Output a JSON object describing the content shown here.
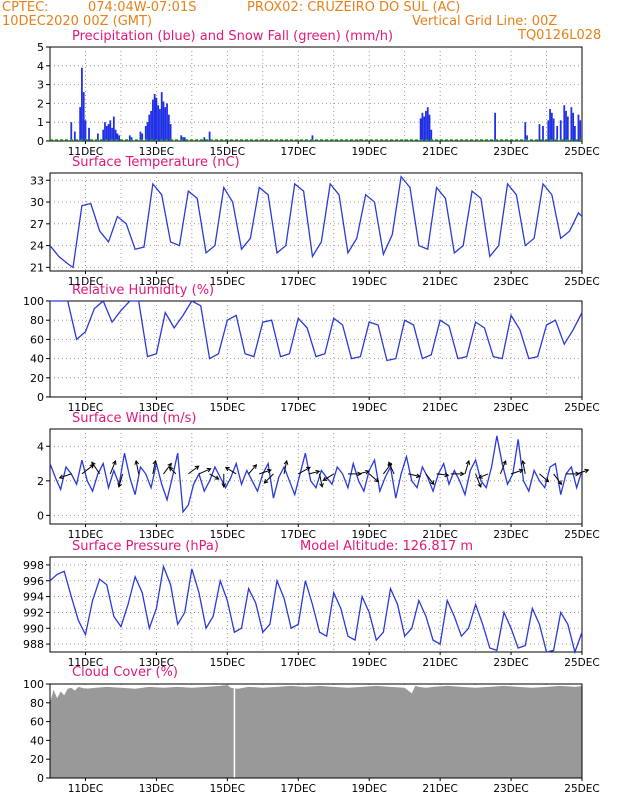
{
  "header": {
    "source": "CPTEC:",
    "coords": "074:04W-07:01S",
    "station": "PROX02: CRUZEIRO DO SUL (AC)",
    "date": "10DEC2020 00Z (GMT)",
    "grid_note": "Vertical Grid Line: 00Z",
    "model": "TQ0126L028"
  },
  "colors": {
    "header_text": "#e8801a",
    "title_text": "#e0187c",
    "precip_bar": "#1f2fe6",
    "snow_line": "#1ea01e",
    "line": "#2a3ad8",
    "cloud_fill": "#999999",
    "wind_arrow": "#000000"
  },
  "x_ticks": [
    "11DEC",
    "13DEC",
    "15DEC",
    "17DEC",
    "19DEC",
    "21DEC",
    "23DEC",
    "25DEC"
  ],
  "chart_data": [
    {
      "id": "precip",
      "type": "bar",
      "title": "Precipitation (blue) and Snow Fall (green) (mm/h)",
      "ylim": [
        0,
        5
      ],
      "yticks": [
        0,
        1,
        2,
        3,
        4,
        5
      ],
      "x_range_days": [
        0,
        15
      ],
      "bars": [
        [
          0.6,
          1.0
        ],
        [
          0.7,
          0.5
        ],
        [
          0.85,
          1.8
        ],
        [
          0.9,
          3.9
        ],
        [
          0.95,
          2.6
        ],
        [
          1.0,
          1.1
        ],
        [
          1.1,
          0.7
        ],
        [
          1.35,
          0.4
        ],
        [
          1.5,
          0.6
        ],
        [
          1.55,
          1.0
        ],
        [
          1.6,
          0.8
        ],
        [
          1.65,
          0.9
        ],
        [
          1.7,
          1.1
        ],
        [
          1.75,
          0.7
        ],
        [
          1.8,
          1.3
        ],
        [
          1.85,
          0.6
        ],
        [
          1.9,
          0.4
        ],
        [
          1.95,
          0.3
        ],
        [
          2.25,
          0.3
        ],
        [
          2.3,
          0.2
        ],
        [
          2.55,
          0.5
        ],
        [
          2.6,
          0.4
        ],
        [
          2.7,
          0.8
        ],
        [
          2.75,
          1.0
        ],
        [
          2.8,
          1.4
        ],
        [
          2.85,
          1.6
        ],
        [
          2.9,
          2.2
        ],
        [
          2.95,
          2.5
        ],
        [
          3.0,
          2.3
        ],
        [
          3.05,
          1.9
        ],
        [
          3.1,
          1.7
        ],
        [
          3.15,
          2.6
        ],
        [
          3.2,
          2.1
        ],
        [
          3.25,
          1.8
        ],
        [
          3.3,
          2.0
        ],
        [
          3.35,
          1.4
        ],
        [
          3.4,
          0.9
        ],
        [
          3.7,
          0.3
        ],
        [
          3.75,
          0.2
        ],
        [
          3.8,
          0.2
        ],
        [
          4.35,
          0.2
        ],
        [
          4.5,
          0.5
        ],
        [
          5.0,
          0.1
        ],
        [
          6.0,
          0.1
        ],
        [
          7.4,
          0.3
        ],
        [
          8.75,
          0.1
        ],
        [
          10.45,
          1.2
        ],
        [
          10.5,
          1.5
        ],
        [
          10.55,
          1.3
        ],
        [
          10.6,
          1.6
        ],
        [
          10.65,
          1.8
        ],
        [
          10.7,
          1.4
        ],
        [
          10.75,
          0.6
        ],
        [
          12.55,
          1.5
        ],
        [
          13.4,
          1.0
        ],
        [
          13.45,
          0.3
        ],
        [
          13.8,
          0.9
        ],
        [
          13.9,
          0.8
        ],
        [
          14.05,
          1.1
        ],
        [
          14.1,
          1.7
        ],
        [
          14.15,
          1.5
        ],
        [
          14.2,
          1.2
        ],
        [
          14.3,
          0.8
        ],
        [
          14.4,
          1.1
        ],
        [
          14.5,
          1.9
        ],
        [
          14.55,
          1.6
        ],
        [
          14.6,
          1.3
        ],
        [
          14.7,
          1.8
        ],
        [
          14.75,
          1.5
        ],
        [
          14.8,
          0.8
        ],
        [
          14.9,
          1.4
        ],
        [
          14.95,
          1.1
        ]
      ],
      "snow_values": [
        0
      ]
    },
    {
      "id": "temp",
      "type": "line",
      "title": "Surface Temperature (nC)",
      "ylim": [
        20.5,
        34
      ],
      "yticks": [
        21,
        24,
        27,
        30,
        33
      ],
      "x": [
        0.0,
        0.25,
        0.5,
        0.65,
        0.9,
        1.15,
        1.4,
        1.65,
        1.9,
        2.15,
        2.4,
        2.65,
        2.9,
        3.15,
        3.4,
        3.65,
        3.9,
        4.15,
        4.4,
        4.65,
        4.9,
        5.15,
        5.4,
        5.65,
        5.9,
        6.15,
        6.4,
        6.65,
        6.9,
        7.15,
        7.4,
        7.65,
        7.9,
        8.15,
        8.4,
        8.65,
        8.9,
        9.15,
        9.4,
        9.65,
        9.9,
        10.15,
        10.4,
        10.65,
        10.9,
        11.15,
        11.4,
        11.65,
        11.9,
        12.15,
        12.4,
        12.65,
        12.9,
        13.15,
        13.4,
        13.65,
        13.9,
        14.15,
        14.4,
        14.65,
        14.9,
        15.0
      ],
      "values": [
        24.0,
        22.5,
        21.5,
        21.0,
        29.5,
        29.8,
        26.0,
        24.5,
        28.0,
        27.0,
        23.5,
        23.8,
        32.5,
        31.0,
        24.5,
        24.0,
        31.5,
        30.5,
        23.0,
        24.0,
        32.0,
        30.0,
        23.5,
        25.0,
        32.0,
        31.0,
        23.0,
        24.0,
        32.5,
        31.5,
        22.5,
        24.5,
        32.5,
        31.0,
        23.0,
        25.0,
        31.0,
        30.0,
        22.8,
        25.5,
        33.5,
        32.0,
        24.0,
        23.5,
        32.0,
        30.5,
        23.0,
        24.0,
        31.5,
        30.5,
        22.5,
        24.0,
        32.5,
        31.0,
        24.0,
        25.0,
        32.5,
        31.0,
        25.0,
        26.0,
        28.5,
        28.0
      ]
    },
    {
      "id": "rh",
      "type": "line",
      "title": "Relative Humidity (%)",
      "ylim": [
        0,
        100
      ],
      "yticks": [
        0,
        20,
        40,
        60,
        80,
        100
      ],
      "x": [
        0.0,
        0.25,
        0.5,
        0.75,
        1.0,
        1.25,
        1.5,
        1.75,
        2.0,
        2.25,
        2.5,
        2.75,
        3.0,
        3.25,
        3.5,
        3.75,
        4.0,
        4.25,
        4.5,
        4.75,
        5.0,
        5.25,
        5.5,
        5.75,
        6.0,
        6.25,
        6.5,
        6.75,
        7.0,
        7.25,
        7.5,
        7.75,
        8.0,
        8.25,
        8.5,
        8.75,
        9.0,
        9.25,
        9.5,
        9.75,
        10.0,
        10.25,
        10.5,
        10.75,
        11.0,
        11.25,
        11.5,
        11.75,
        12.0,
        12.25,
        12.5,
        12.75,
        13.0,
        13.25,
        13.5,
        13.75,
        14.0,
        14.25,
        14.5,
        14.75,
        15.0
      ],
      "values": [
        100,
        100,
        100,
        60,
        68,
        92,
        100,
        78,
        90,
        100,
        100,
        42,
        45,
        88,
        72,
        85,
        100,
        95,
        40,
        45,
        80,
        85,
        45,
        42,
        78,
        80,
        42,
        45,
        82,
        72,
        42,
        45,
        82,
        75,
        40,
        42,
        78,
        75,
        38,
        40,
        80,
        75,
        40,
        44,
        80,
        74,
        40,
        42,
        78,
        72,
        42,
        40,
        85,
        70,
        40,
        42,
        75,
        80,
        55,
        70,
        88
      ]
    },
    {
      "id": "wind",
      "type": "line",
      "title": "Surface Wind (m/s)",
      "ylim": [
        -0.5,
        5
      ],
      "yticks": [
        0,
        2,
        4
      ],
      "x": [
        0.0,
        0.15,
        0.3,
        0.45,
        0.6,
        0.75,
        0.9,
        1.05,
        1.2,
        1.35,
        1.5,
        1.65,
        1.8,
        1.95,
        2.1,
        2.25,
        2.4,
        2.55,
        2.7,
        2.85,
        3.0,
        3.15,
        3.3,
        3.45,
        3.6,
        3.75,
        3.9,
        4.05,
        4.2,
        4.35,
        4.5,
        4.65,
        4.8,
        4.95,
        5.1,
        5.25,
        5.4,
        5.55,
        5.7,
        5.85,
        6.0,
        6.15,
        6.3,
        6.45,
        6.6,
        6.75,
        6.9,
        7.05,
        7.2,
        7.35,
        7.5,
        7.65,
        7.8,
        7.95,
        8.1,
        8.25,
        8.4,
        8.55,
        8.7,
        8.85,
        9.0,
        9.15,
        9.3,
        9.45,
        9.6,
        9.75,
        9.9,
        10.05,
        10.2,
        10.35,
        10.5,
        10.65,
        10.8,
        10.95,
        11.1,
        11.25,
        11.4,
        11.55,
        11.7,
        11.85,
        12.0,
        12.15,
        12.3,
        12.45,
        12.6,
        12.75,
        12.9,
        13.05,
        13.2,
        13.35,
        13.5,
        13.65,
        13.8,
        13.95,
        14.1,
        14.25,
        14.4,
        14.55,
        14.7,
        14.85,
        15.0
      ],
      "values": [
        3.0,
        2.2,
        1.5,
        2.8,
        2.4,
        1.8,
        3.2,
        2.0,
        1.4,
        2.4,
        3.0,
        1.6,
        2.6,
        1.8,
        3.6,
        2.2,
        1.2,
        2.8,
        2.4,
        1.6,
        3.0,
        1.8,
        0.9,
        2.2,
        3.6,
        0.2,
        0.6,
        1.8,
        2.4,
        1.4,
        2.0,
        2.8,
        2.2,
        1.6,
        2.2,
        3.0,
        1.8,
        2.6,
        2.0,
        1.4,
        2.4,
        3.0,
        1.0,
        2.2,
        2.8,
        2.0,
        1.2,
        2.4,
        3.6,
        2.0,
        1.6,
        2.6,
        2.2,
        1.8,
        2.8,
        2.4,
        1.6,
        3.0,
        2.0,
        1.4,
        2.6,
        3.2,
        1.4,
        2.2,
        2.8,
        1.0,
        2.4,
        3.4,
        2.0,
        1.6,
        2.8,
        2.2,
        1.4,
        2.4,
        3.0,
        1.8,
        2.6,
        2.0,
        1.2,
        2.6,
        3.2,
        2.0,
        1.6,
        2.8,
        4.6,
        3.0,
        1.8,
        2.4,
        4.4,
        2.0,
        1.4,
        2.6,
        2.0,
        1.6,
        2.8,
        3.0,
        1.2,
        2.4,
        2.8,
        1.6,
        2.6
      ],
      "vectors": [
        [
          0.6,
          -0.9,
          0.3
        ],
        [
          0.9,
          0.9,
          -0.7
        ],
        [
          1.4,
          -0.6,
          -0.9
        ],
        [
          1.7,
          0.4,
          -1.0
        ],
        [
          2.05,
          -0.3,
          1.0
        ],
        [
          2.5,
          -0.2,
          -1.0
        ],
        [
          2.9,
          0.2,
          -1.0
        ],
        [
          3.2,
          0.6,
          -0.8
        ],
        [
          3.55,
          -0.5,
          -0.5
        ],
        [
          3.9,
          0.8,
          -0.6
        ],
        [
          4.2,
          0.9,
          -0.4
        ],
        [
          4.5,
          0.7,
          0.4
        ],
        [
          4.9,
          0.0,
          1.0
        ],
        [
          5.25,
          -0.8,
          -0.5
        ],
        [
          5.6,
          0.6,
          -0.7
        ],
        [
          5.9,
          0.9,
          -0.3
        ],
        [
          6.3,
          -0.7,
          0.7
        ],
        [
          6.6,
          0.2,
          -1.0
        ],
        [
          7.0,
          0.9,
          -0.5
        ],
        [
          7.3,
          0.8,
          -0.2
        ],
        [
          7.6,
          0.2,
          1.0
        ],
        [
          8.0,
          -0.8,
          0.5
        ],
        [
          8.4,
          1.0,
          0.0
        ],
        [
          8.7,
          0.8,
          -0.2
        ],
        [
          9.0,
          0.7,
          0.6
        ],
        [
          9.4,
          0.6,
          -0.8
        ],
        [
          9.7,
          -0.4,
          -0.9
        ],
        [
          10.1,
          0.9,
          0.2
        ],
        [
          10.6,
          0.6,
          0.8
        ],
        [
          10.9,
          0.9,
          0.1
        ],
        [
          11.3,
          1.0,
          0.0
        ],
        [
          11.7,
          0.3,
          -1.0
        ],
        [
          12.0,
          0.4,
          1.0
        ],
        [
          12.35,
          -0.7,
          0.3
        ],
        [
          12.7,
          0.4,
          -1.0
        ],
        [
          13.0,
          0.9,
          -0.3
        ],
        [
          13.4,
          -0.2,
          -1.0
        ],
        [
          13.8,
          0.7,
          0.6
        ],
        [
          14.2,
          0.6,
          0.8
        ],
        [
          14.55,
          1.0,
          0.0
        ],
        [
          14.85,
          0.9,
          -0.3
        ]
      ]
    },
    {
      "id": "pres",
      "type": "line",
      "title": "Surface Pressure (hPa)",
      "annotation": "Model Altitude: 126.817  m",
      "ylim": [
        987,
        999
      ],
      "yticks": [
        988,
        990,
        992,
        994,
        996,
        998
      ],
      "x": [
        0.0,
        0.2,
        0.4,
        0.6,
        0.8,
        1.0,
        1.2,
        1.4,
        1.6,
        1.8,
        2.0,
        2.2,
        2.4,
        2.6,
        2.8,
        3.0,
        3.2,
        3.4,
        3.6,
        3.8,
        4.0,
        4.2,
        4.4,
        4.6,
        4.8,
        5.0,
        5.2,
        5.4,
        5.6,
        5.8,
        6.0,
        6.2,
        6.4,
        6.6,
        6.8,
        7.0,
        7.2,
        7.4,
        7.6,
        7.8,
        8.0,
        8.2,
        8.4,
        8.6,
        8.8,
        9.0,
        9.2,
        9.4,
        9.6,
        9.8,
        10.0,
        10.2,
        10.4,
        10.6,
        10.8,
        11.0,
        11.2,
        11.4,
        11.6,
        11.8,
        12.0,
        12.2,
        12.4,
        12.6,
        12.8,
        13.0,
        13.2,
        13.4,
        13.6,
        13.8,
        14.0,
        14.2,
        14.4,
        14.6,
        14.8,
        15.0
      ],
      "values": [
        996.0,
        996.8,
        997.2,
        994.0,
        991.0,
        989.2,
        993.5,
        996.2,
        995.5,
        991.5,
        990.2,
        993.0,
        996.5,
        994.5,
        990.0,
        992.5,
        997.8,
        995.5,
        990.5,
        992.0,
        997.5,
        994.5,
        990.0,
        991.5,
        996.0,
        993.5,
        989.5,
        990.0,
        995.0,
        993.2,
        989.5,
        990.5,
        996.0,
        993.8,
        990.0,
        990.5,
        996.0,
        993.0,
        989.5,
        989.0,
        994.5,
        992.5,
        989.0,
        988.5,
        994.0,
        992.0,
        988.5,
        989.5,
        995.0,
        993.0,
        989.0,
        990.0,
        993.5,
        991.5,
        988.5,
        988.0,
        993.5,
        991.5,
        989.0,
        990.0,
        993.0,
        990.5,
        987.5,
        987.2,
        992.0,
        990.0,
        987.5,
        987.8,
        992.5,
        990.5,
        987.0,
        987.2,
        992.0,
        990.5,
        987.0,
        989.5
      ]
    },
    {
      "id": "cloud",
      "type": "area",
      "title": "Cloud Cover (%)",
      "ylim": [
        0,
        100
      ],
      "yticks": [
        0,
        20,
        40,
        60,
        80,
        100
      ],
      "x": [
        0.0,
        0.1,
        0.2,
        0.3,
        0.4,
        0.5,
        0.6,
        0.7,
        0.8,
        1.0,
        1.3,
        1.6,
        2.0,
        2.4,
        2.8,
        3.2,
        3.6,
        4.0,
        4.4,
        4.8,
        5.0,
        5.1,
        5.3,
        5.6,
        6.0,
        6.4,
        6.8,
        7.2,
        7.6,
        8.0,
        8.4,
        8.8,
        9.2,
        9.6,
        10.0,
        10.2,
        10.3,
        10.4,
        10.6,
        10.8,
        11.2,
        11.6,
        12.0,
        12.4,
        12.8,
        13.2,
        13.6,
        14.0,
        14.4,
        14.8,
        15.0
      ],
      "values": [
        80,
        94,
        85,
        92,
        88,
        95,
        96,
        93,
        97,
        95,
        96,
        97,
        96,
        95,
        97,
        96,
        97,
        96,
        97,
        98,
        99,
        96,
        95,
        97,
        96,
        97,
        98,
        97,
        98,
        97,
        96,
        97,
        98,
        97,
        96,
        90,
        98,
        97,
        96,
        97,
        98,
        97,
        96,
        97,
        98,
        97,
        96,
        97,
        98,
        97,
        98
      ],
      "gap_at_day": 5.2
    }
  ]
}
